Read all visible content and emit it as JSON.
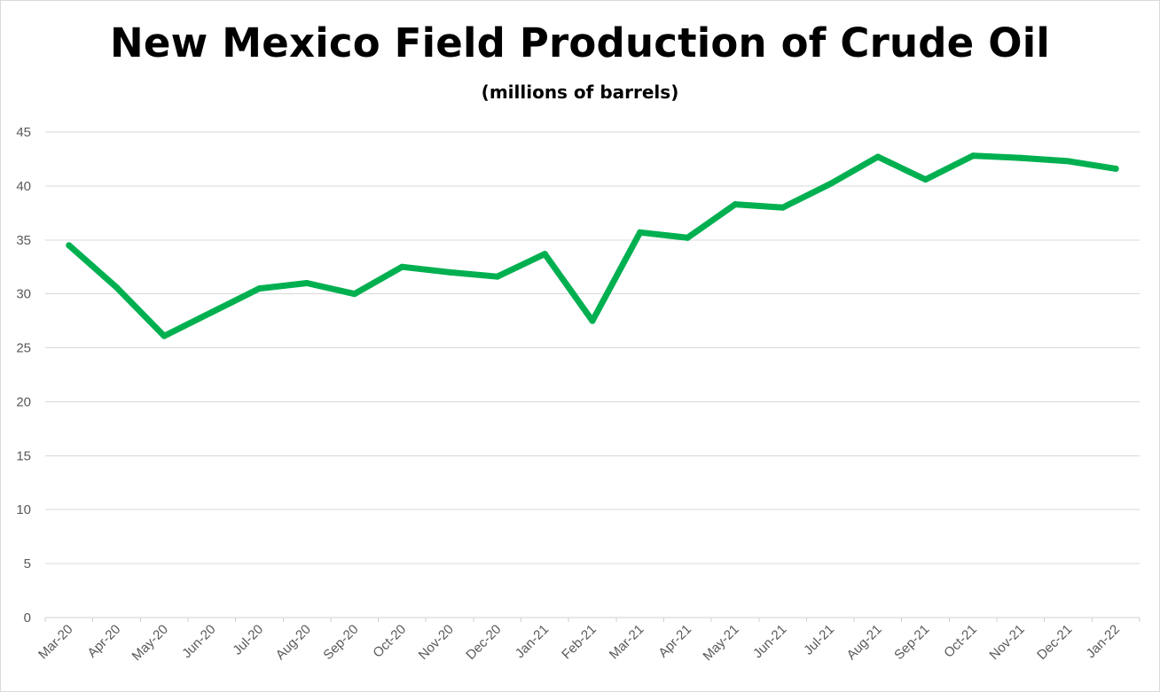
{
  "chart_data": {
    "type": "line",
    "title": "New Mexico Field Production of Crude Oil",
    "subtitle": "(millions of barrels)",
    "xlabel": "",
    "ylabel": "",
    "ylim": [
      0,
      45
    ],
    "yticks": [
      0,
      5,
      10,
      15,
      20,
      25,
      30,
      35,
      40,
      45
    ],
    "grid": true,
    "legend": "none",
    "categories": [
      "Mar-20",
      "Apr-20",
      "May-20",
      "Jun-20",
      "Jul-20",
      "Aug-20",
      "Sep-20",
      "Oct-20",
      "Nov-20",
      "Dec-20",
      "Jan-21",
      "Feb-21",
      "Mar-21",
      "Apr-21",
      "May-21",
      "Jun-21",
      "Jul-21",
      "Aug-21",
      "Sep-21",
      "Oct-21",
      "Nov-21",
      "Dec-21",
      "Jan-22"
    ],
    "series": [
      {
        "color": "#00b050",
        "values": [
          34.5,
          30.6,
          26.1,
          28.3,
          30.5,
          31.0,
          30.0,
          32.5,
          32.0,
          31.6,
          33.7,
          27.5,
          35.7,
          35.2,
          38.3,
          38.0,
          40.2,
          42.7,
          40.6,
          42.8,
          42.6,
          42.3,
          41.6
        ]
      }
    ]
  }
}
